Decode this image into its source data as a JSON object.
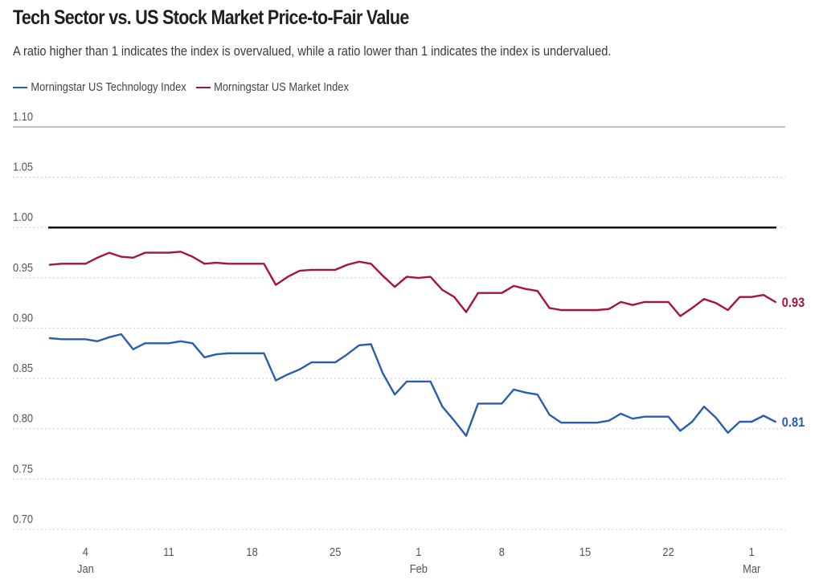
{
  "chart_data": {
    "type": "line",
    "title": "Tech Sector vs. US Stock Market Price-to-Fair Value",
    "subtitle": "A ratio higher than 1 indicates the index is overvalued, while a ratio lower than 1 indicates the index is undervalued.",
    "xlabel": "",
    "ylabel": "",
    "ylim": [
      0.7,
      1.1
    ],
    "yticks": [
      "1.10",
      "1.05",
      "1.00",
      "0.95",
      "0.90",
      "0.85",
      "0.80",
      "0.75",
      "0.70"
    ],
    "ytick_values": [
      1.1,
      1.05,
      1.0,
      0.95,
      0.9,
      0.85,
      0.8,
      0.75,
      0.7
    ],
    "reference_line": 1.0,
    "grid": true,
    "legend_position": "top-left",
    "x_start": "Jan 1",
    "x_end": "Mar 3",
    "x_unit": "day",
    "xticks": [
      {
        "day": 3,
        "label": "4",
        "month": "Jan"
      },
      {
        "day": 10,
        "label": "11",
        "month": ""
      },
      {
        "day": 17,
        "label": "18",
        "month": ""
      },
      {
        "day": 24,
        "label": "25",
        "month": ""
      },
      {
        "day": 31,
        "label": "1",
        "month": "Feb"
      },
      {
        "day": 38,
        "label": "8",
        "month": ""
      },
      {
        "day": 45,
        "label": "15",
        "month": ""
      },
      {
        "day": 52,
        "label": "22",
        "month": ""
      },
      {
        "day": 59,
        "label": "1",
        "month": "Mar"
      }
    ],
    "series": [
      {
        "name": "Morningstar US Technology Index",
        "color": "#2a5db0",
        "end_label": "0.81",
        "values": [
          0.89,
          0.889,
          0.889,
          0.889,
          0.887,
          0.891,
          0.894,
          0.879,
          0.885,
          0.885,
          0.885,
          0.887,
          0.885,
          0.871,
          0.874,
          0.875,
          0.875,
          0.875,
          0.875,
          0.848,
          0.854,
          0.859,
          0.866,
          0.866,
          0.866,
          0.874,
          0.883,
          0.884,
          0.855,
          0.834,
          0.847,
          0.847,
          0.847,
          0.822,
          0.808,
          0.793,
          0.825,
          0.825,
          0.825,
          0.839,
          0.836,
          0.834,
          0.814,
          0.806,
          0.806,
          0.806,
          0.806,
          0.808,
          0.815,
          0.81,
          0.812,
          0.812,
          0.812,
          0.798,
          0.807,
          0.822,
          0.811,
          0.796,
          0.807,
          0.807,
          0.813,
          0.807
        ]
      },
      {
        "name": "Morningstar US Market Index",
        "color": "#a8123e",
        "end_label": "0.93",
        "values": [
          0.963,
          0.964,
          0.964,
          0.964,
          0.97,
          0.975,
          0.971,
          0.97,
          0.975,
          0.975,
          0.975,
          0.976,
          0.971,
          0.964,
          0.965,
          0.964,
          0.964,
          0.964,
          0.964,
          0.943,
          0.951,
          0.957,
          0.958,
          0.958,
          0.958,
          0.963,
          0.966,
          0.964,
          0.952,
          0.941,
          0.951,
          0.95,
          0.951,
          0.938,
          0.931,
          0.916,
          0.935,
          0.935,
          0.935,
          0.942,
          0.939,
          0.937,
          0.92,
          0.918,
          0.918,
          0.918,
          0.918,
          0.919,
          0.926,
          0.923,
          0.926,
          0.926,
          0.926,
          0.912,
          0.92,
          0.929,
          0.925,
          0.918,
          0.931,
          0.931,
          0.933,
          0.926
        ]
      }
    ]
  }
}
